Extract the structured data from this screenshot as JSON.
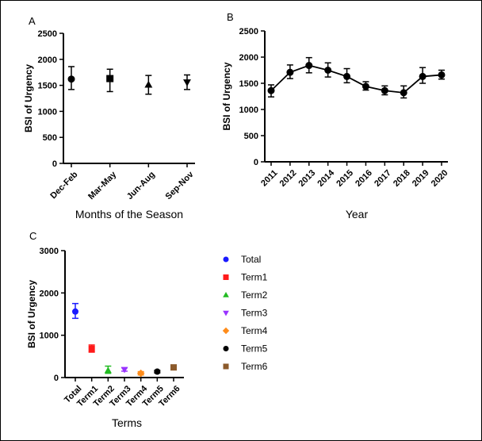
{
  "chart_data": [
    {
      "panel": "A",
      "type": "scatter",
      "categories": [
        "Dec-Feb",
        "Mar-May",
        "Jun-Aug",
        "Sep-Nov"
      ],
      "values": [
        1620,
        1630,
        1510,
        1560
      ],
      "error_low": [
        1420,
        1380,
        1330,
        1420
      ],
      "error_high": [
        1860,
        1810,
        1690,
        1700
      ],
      "xlabel": "Months of the Season",
      "ylabel": "BSI of Urgency",
      "ylim": [
        0,
        2500
      ],
      "yticks": [
        0,
        500,
        1000,
        1500,
        2000,
        2500
      ],
      "markers": [
        "circle",
        "square",
        "triangle-up",
        "triangle-down"
      ],
      "color": "#000000"
    },
    {
      "panel": "B",
      "type": "line",
      "categories": [
        "2011",
        "2012",
        "2013",
        "2014",
        "2015",
        "2016",
        "2017",
        "2018",
        "2019",
        "2020"
      ],
      "values": [
        1360,
        1710,
        1840,
        1750,
        1630,
        1440,
        1360,
        1320,
        1630,
        1660
      ],
      "error_low": [
        1240,
        1590,
        1700,
        1620,
        1510,
        1370,
        1280,
        1220,
        1500,
        1580
      ],
      "error_high": [
        1470,
        1850,
        1990,
        1890,
        1780,
        1530,
        1450,
        1450,
        1800,
        1750
      ],
      "xlabel": "Year",
      "ylabel": "BSI of Urgency",
      "ylim": [
        0,
        2500
      ],
      "yticks": [
        0,
        500,
        1000,
        1500,
        2000,
        2500
      ],
      "color": "#000000"
    },
    {
      "panel": "C",
      "type": "scatter",
      "categories": [
        "Total",
        "Term1",
        "Term2",
        "Term3",
        "Term4",
        "Term5",
        "Term6"
      ],
      "values": [
        1560,
        680,
        170,
        190,
        100,
        140,
        240
      ],
      "error_low": [
        1400,
        600,
        100,
        150,
        60,
        110,
        190
      ],
      "error_high": [
        1750,
        770,
        270,
        230,
        140,
        170,
        290
      ],
      "xlabel": "Terms",
      "ylabel": "BSI of Urgency",
      "ylim": [
        0,
        3000
      ],
      "yticks": [
        0,
        1000,
        2000,
        3000
      ],
      "series": [
        {
          "name": "Total",
          "color": "#1a1aff",
          "marker": "circle"
        },
        {
          "name": "Term1",
          "color": "#ff1a1a",
          "marker": "square"
        },
        {
          "name": "Term2",
          "color": "#22bb22",
          "marker": "triangle-up"
        },
        {
          "name": "Term3",
          "color": "#9933ff",
          "marker": "triangle-down"
        },
        {
          "name": "Term4",
          "color": "#ff8c1a",
          "marker": "diamond"
        },
        {
          "name": "Term5",
          "color": "#000000",
          "marker": "circle"
        },
        {
          "name": "Term6",
          "color": "#8b5a2b",
          "marker": "square"
        }
      ],
      "legend_position": "right"
    }
  ]
}
